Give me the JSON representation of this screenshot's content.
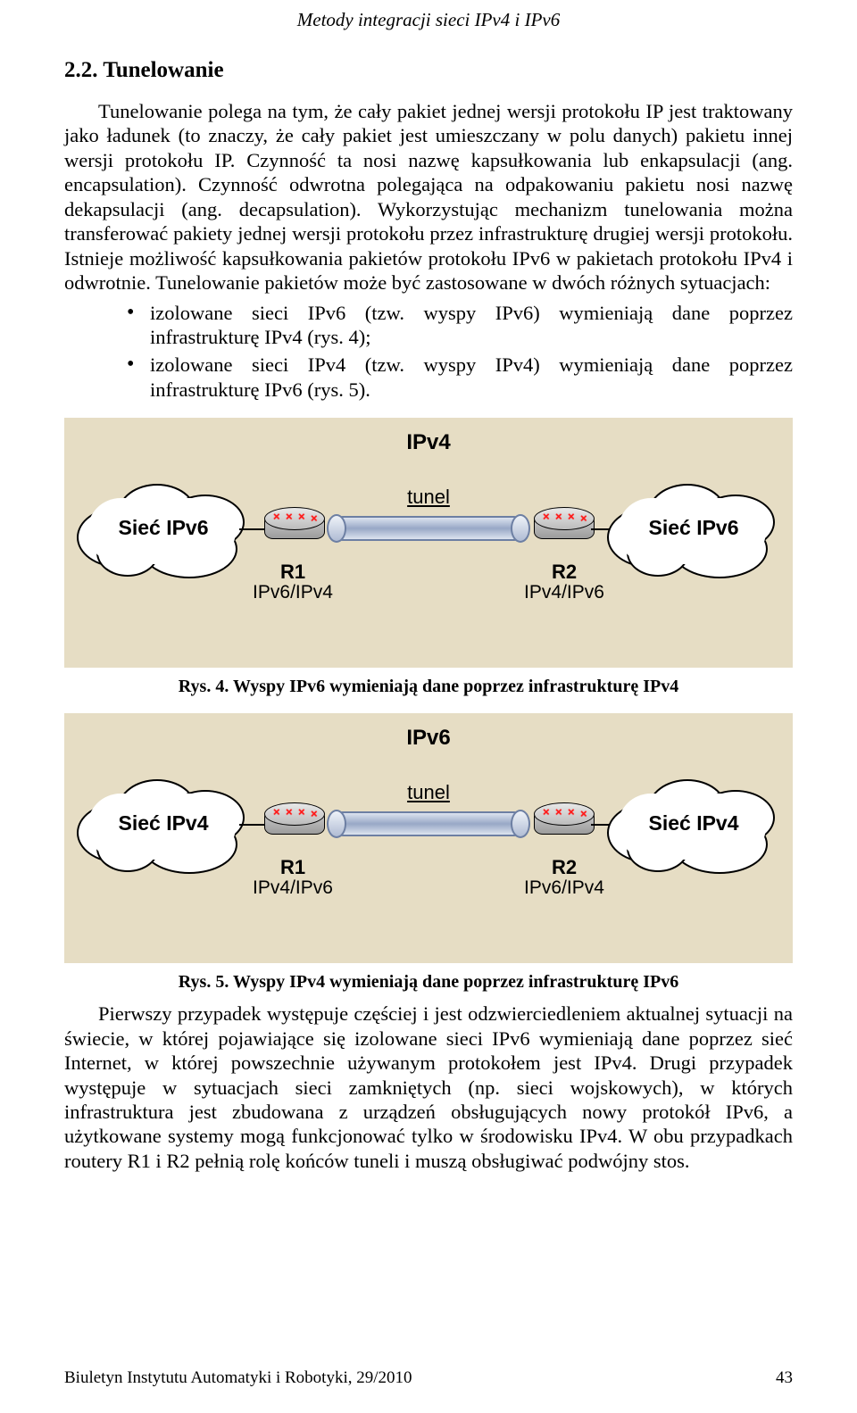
{
  "running_head": "Metody integracji sieci IPv4 i IPv6",
  "section": {
    "number": "2.2.",
    "title": "Tunelowanie"
  },
  "para1": "Tunelowanie polega na tym, że cały pakiet jednej wersji protokołu IP jest traktowany jako ładunek (to znaczy, że cały pakiet jest umieszczany w polu danych) pakietu innej wersji protokołu IP. Czynność ta nosi nazwę kapsułkowania lub enkapsulacji (ang. encapsulation). Czynność odwrotna polegająca na odpakowaniu pakietu nosi nazwę dekapsulacji (ang. decapsulation). Wykorzystując mechanizm tunelowania można transferować pakiety jednej wersji protokołu przez infrastrukturę drugiej wersji protokołu. Istnieje możliwość kapsułkowania pakietów protokołu IPv6 w pakietach protokołu IPv4 i odwrotnie. Tunelowanie pakietów może być zastosowane w dwóch różnych sytuacjach:",
  "bullets": [
    "izolowane sieci IPv6 (tzw. wyspy IPv6) wymieniają dane poprzez infrastrukturę IPv4 (rys. 4);",
    "izolowane sieci IPv4 (tzw. wyspy IPv4) wymieniają dane poprzez infrastrukturę IPv6 (rys. 5)."
  ],
  "fig4": {
    "top_label": "IPv4",
    "cloud_left": "Sieć IPv6",
    "cloud_right": "Sieć IPv6",
    "tunnel_label": "tunel",
    "r1_name": "R1",
    "r1_proto": "IPv6/IPv4",
    "r2_name": "R2",
    "r2_proto": "IPv4/IPv6",
    "caption": "Rys. 4. Wyspy IPv6 wymieniają dane poprzez infrastrukturę IPv4"
  },
  "fig5": {
    "top_label": "IPv6",
    "cloud_left": "Sieć IPv4",
    "cloud_right": "Sieć IPv4",
    "tunnel_label": "tunel",
    "r1_name": "R1",
    "r1_proto": "IPv4/IPv6",
    "r2_name": "R2",
    "r2_proto": "IPv6/IPv4",
    "caption": "Rys. 5. Wyspy IPv4 wymieniają dane poprzez infrastrukturę IPv6"
  },
  "para2": "Pierwszy przypadek występuje częściej i jest odzwierciedleniem aktualnej sytuacji na świecie, w której pojawiające się izolowane sieci IPv6 wymieniają dane poprzez sieć Internet, w której powszechnie używanym protokołem jest IPv4. Drugi przypadek występuje w sytuacjach sieci zamkniętych (np. sieci wojskowych), w których infrastruktura jest zbudowana z urządzeń obsługujących nowy protokół IPv6, a użytkowane systemy mogą funkcjonować tylko w środowisku IPv4. W obu przypadkach routery R1 i R2 pełnią rolę końców tuneli i muszą obsługiwać podwójny stos.",
  "footer": {
    "journal": "Biuletyn Instytutu Automatyki i Robotyki, 29/2010",
    "page": "43"
  },
  "colors": {
    "figure_bg": "#e6ddc4",
    "tunnel_border": "#6d7fa3",
    "router_arrow": "#ff1a1a"
  }
}
